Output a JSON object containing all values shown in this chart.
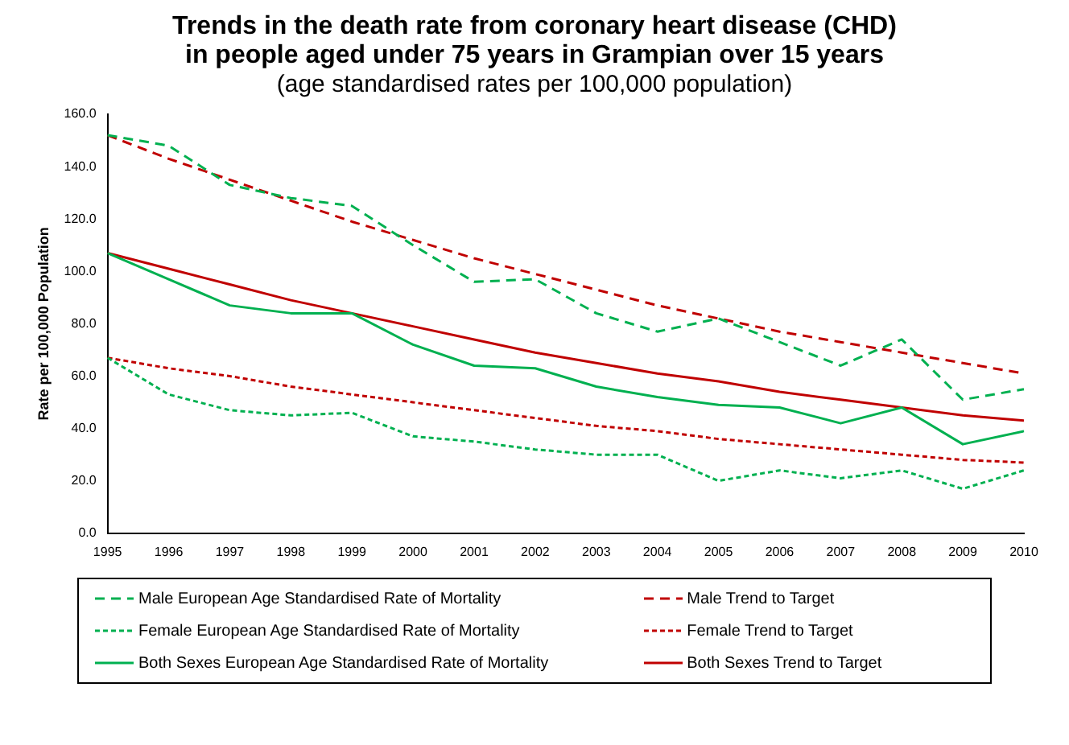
{
  "chart_data": {
    "type": "line",
    "title": "Trends in the death rate from coronary heart disease (CHD) in people aged under 75 years in Grampian over 15 years",
    "subtitle": "(age standardised rates per 100,000 population)",
    "ylabel": "Rate per 100,000 Population",
    "categories": [
      "1995",
      "1996",
      "1997",
      "1998",
      "1999",
      "2000",
      "2001",
      "2002",
      "2003",
      "2004",
      "2005",
      "2006",
      "2007",
      "2008",
      "2009",
      "2010"
    ],
    "series": [
      {
        "name": "Male European Age Standardised Rate of Mortality",
        "color": "#00b050",
        "line_style": "dashed",
        "values": [
          152,
          148,
          133,
          128,
          125,
          110,
          96,
          97,
          84,
          77,
          82,
          73,
          64,
          74,
          51,
          55
        ]
      },
      {
        "name": "Male Trend to Target",
        "color": "#c00000",
        "line_style": "dashed",
        "values": [
          152,
          143,
          135,
          127,
          119,
          112,
          105,
          99,
          93,
          87,
          82,
          77,
          73,
          69,
          65,
          61
        ]
      },
      {
        "name": "Female European Age Standardised Rate of Mortality",
        "color": "#00b050",
        "line_style": "dotted",
        "values": [
          67,
          53,
          47,
          45,
          46,
          37,
          35,
          32,
          30,
          30,
          20,
          24,
          21,
          24,
          17,
          24
        ]
      },
      {
        "name": "Female Trend to Target",
        "color": "#c00000",
        "line_style": "dotted",
        "values": [
          67,
          63,
          60,
          56,
          53,
          50,
          47,
          44,
          41,
          39,
          36,
          34,
          32,
          30,
          28,
          27
        ]
      },
      {
        "name": "Both Sexes European Age Standardised Rate of Mortality",
        "color": "#00b050",
        "line_style": "solid",
        "values": [
          107,
          97,
          87,
          84,
          84,
          72,
          64,
          63,
          56,
          52,
          49,
          48,
          42,
          48,
          34,
          39
        ]
      },
      {
        "name": "Both Sexes Trend to Target",
        "color": "#c00000",
        "line_style": "solid",
        "values": [
          107,
          101,
          95,
          89,
          84,
          79,
          74,
          69,
          65,
          61,
          58,
          54,
          51,
          48,
          45,
          43
        ]
      }
    ],
    "ylim": [
      0,
      160
    ],
    "yticks": [
      {
        "value": 0,
        "label": "0.0"
      },
      {
        "value": 20,
        "label": "20.0"
      },
      {
        "value": 40,
        "label": "40.0"
      },
      {
        "value": 60,
        "label": "60.0"
      },
      {
        "value": 80,
        "label": "80.0"
      },
      {
        "value": 100,
        "label": "100.0"
      },
      {
        "value": 120,
        "label": "120.0"
      },
      {
        "value": 140,
        "label": "140.0"
      },
      {
        "value": 160,
        "label": "160.0"
      }
    ],
    "grid": false,
    "legend": "bottom",
    "marker": "none"
  }
}
